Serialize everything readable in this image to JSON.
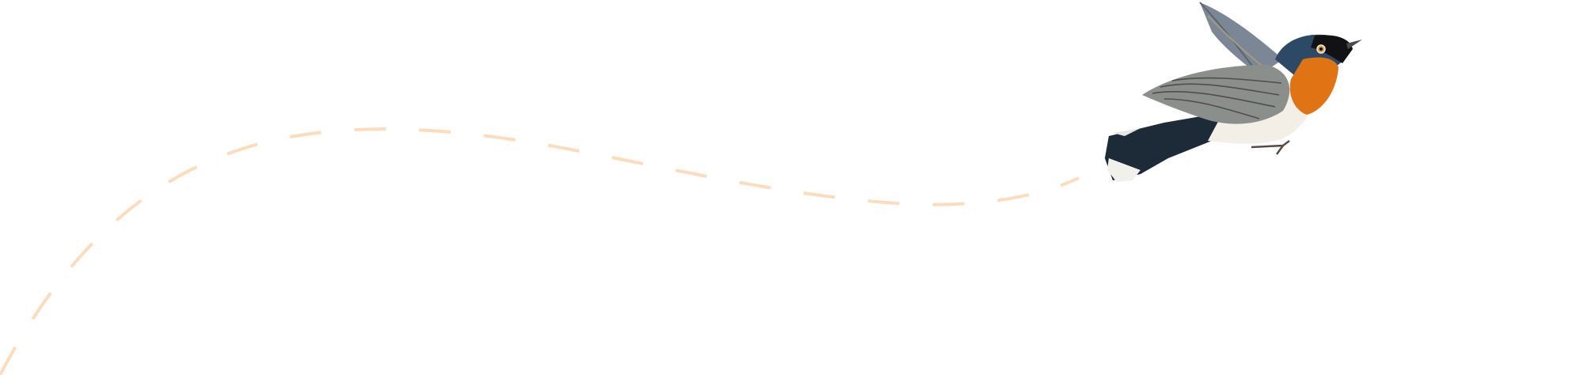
{
  "colors": {
    "background": "#ffffff",
    "flight_path": "#fcdcbc",
    "bird_throat": "#e07414",
    "bird_head": "#2c4a66",
    "bird_wing": "#8a8f8c",
    "bird_belly": "#f3efe6"
  },
  "illustration": {
    "subject": "bird-flying",
    "path_style": "dashed"
  }
}
